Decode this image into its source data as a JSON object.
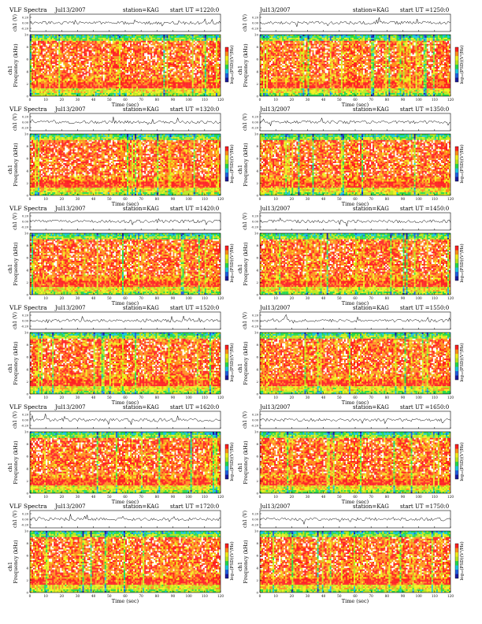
{
  "panels": [
    {
      "title": "VLF Spectra",
      "date": "Jul13/2007",
      "station": "station=KAG",
      "start": "start UT =1220:0",
      "seed": 11
    },
    {
      "title": "",
      "date": "Jul13/2007",
      "station": "station=KAG",
      "start": "start UT =1250:0",
      "seed": 23
    },
    {
      "title": "VLF Spectra",
      "date": "Jul13/2007",
      "station": "station=KAG",
      "start": "start UT =1320:0",
      "seed": 37
    },
    {
      "title": "",
      "date": "Jul13/2007",
      "station": "station=KAG",
      "start": "start UT =1350:0",
      "seed": 41
    },
    {
      "title": "VLF Spectra",
      "date": "Jul13/2007",
      "station": "station=KAG",
      "start": "start UT =1420:0",
      "seed": 53
    },
    {
      "title": "",
      "date": "Jul13/2007",
      "station": "station=KAG",
      "start": "start UT =1450:0",
      "seed": 67
    },
    {
      "title": "VLF Spectra",
      "date": "Jul13/2007",
      "station": "station=KAG",
      "start": "start UT =1520:0",
      "seed": 71
    },
    {
      "title": "",
      "date": "Jul13/2007",
      "station": "station=KAG",
      "start": "start UT =1550:0",
      "seed": 83
    },
    {
      "title": "VLF Spectra",
      "date": "Jul13/2007",
      "station": "station=KAG",
      "start": "start UT =1620:0",
      "seed": 97
    },
    {
      "title": "",
      "date": "Jul13/2007",
      "station": "station=KAG",
      "start": "start UT =1650:0",
      "seed": 101
    },
    {
      "title": "VLF Spectra",
      "date": "Jul13/2007",
      "station": "station=KAG",
      "start": "start UT =1720:0",
      "seed": 113
    },
    {
      "title": "",
      "date": "Jul13/2007",
      "station": "station=KAG",
      "start": "start UT =1750:0",
      "seed": 127
    }
  ],
  "chart_data": {
    "type": "heatmap",
    "waveform_ylabel": "ch1 (V)",
    "waveform_yticks": [
      "0.20",
      "0.00",
      "-0.20"
    ],
    "freq_ylabel": "Frequency (kHz)",
    "freq_ylabel_prefix": "ch1",
    "freq_ylim": [
      0,
      10
    ],
    "freq_yticks": [
      "0",
      "2",
      "4",
      "6",
      "8",
      "10"
    ],
    "xlabel": "Time (sec)",
    "xlim": [
      0,
      120
    ],
    "xticks": [
      "0",
      "10",
      "20",
      "30",
      "40",
      "50",
      "60",
      "70",
      "80",
      "90",
      "100",
      "110",
      "120"
    ],
    "colorbar_label": "log₁₀(PSD)(V²/Hz)",
    "colormap": [
      "#1a1aa0",
      "#1e5fe0",
      "#19c8e0",
      "#25d94a",
      "#b8e61c",
      "#f3ef1a",
      "#ff8c1a",
      "#ff1f1f"
    ],
    "grid": false
  }
}
